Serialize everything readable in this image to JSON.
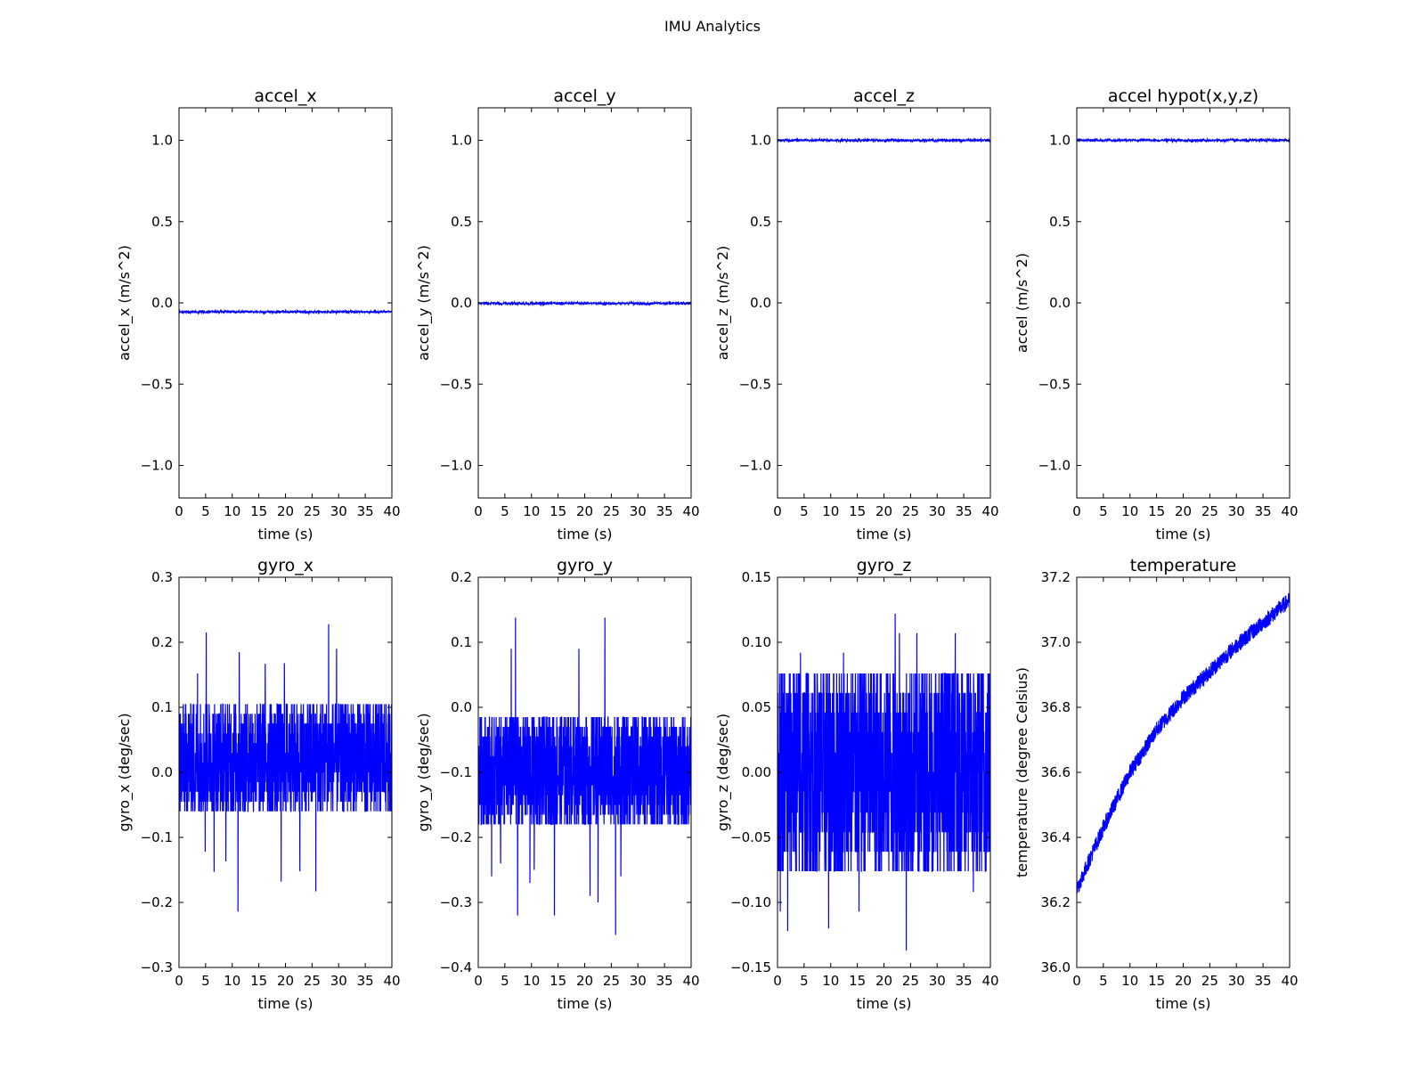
{
  "figure": {
    "title": "IMU Analytics"
  },
  "colors": {
    "series": "#0000ff",
    "axes": "#000000",
    "background": "#ffffff"
  },
  "chart_data": [
    {
      "type": "line",
      "title": "accel_x",
      "xlabel": "time (s)",
      "ylabel": "accel_x (m/s^2)",
      "xlim": [
        0,
        40
      ],
      "ylim": [
        -1.2,
        1.2
      ],
      "xticks": [
        0,
        5,
        10,
        15,
        20,
        25,
        30,
        35,
        40
      ],
      "xtick_labels": [
        "0",
        "5",
        "10",
        "15",
        "20",
        "25",
        "30",
        "35",
        "40"
      ],
      "yticks": [
        -1.0,
        -0.5,
        0.0,
        0.5,
        1.0
      ],
      "ytick_labels": [
        "−1.0",
        "−0.5",
        "0.0",
        "0.5",
        "1.0"
      ],
      "signal": {
        "kind": "noise",
        "mean": -0.055,
        "noise": 0.004,
        "n": 800
      }
    },
    {
      "type": "line",
      "title": "accel_y",
      "xlabel": "time (s)",
      "ylabel": "accel_y (m/s^2)",
      "xlim": [
        0,
        40
      ],
      "ylim": [
        -1.2,
        1.2
      ],
      "xticks": [
        0,
        5,
        10,
        15,
        20,
        25,
        30,
        35,
        40
      ],
      "xtick_labels": [
        "0",
        "5",
        "10",
        "15",
        "20",
        "25",
        "30",
        "35",
        "40"
      ],
      "yticks": [
        -1.0,
        -0.5,
        0.0,
        0.5,
        1.0
      ],
      "ytick_labels": [
        "−1.0",
        "−0.5",
        "0.0",
        "0.5",
        "1.0"
      ],
      "signal": {
        "kind": "noise",
        "mean": -0.003,
        "noise": 0.004,
        "n": 800
      }
    },
    {
      "type": "line",
      "title": "accel_z",
      "xlabel": "time (s)",
      "ylabel": "accel_z (m/s^2)",
      "xlim": [
        0,
        40
      ],
      "ylim": [
        -1.2,
        1.2
      ],
      "xticks": [
        0,
        5,
        10,
        15,
        20,
        25,
        30,
        35,
        40
      ],
      "xtick_labels": [
        "0",
        "5",
        "10",
        "15",
        "20",
        "25",
        "30",
        "35",
        "40"
      ],
      "yticks": [
        -1.0,
        -0.5,
        0.0,
        0.5,
        1.0
      ],
      "ytick_labels": [
        "−1.0",
        "−0.5",
        "0.0",
        "0.5",
        "1.0"
      ],
      "signal": {
        "kind": "noise",
        "mean": 1.0,
        "noise": 0.004,
        "n": 800
      }
    },
    {
      "type": "line",
      "title": "accel hypot(x,y,z)",
      "xlabel": "time (s)",
      "ylabel": "accel (m/s^2)",
      "xlim": [
        0,
        40
      ],
      "ylim": [
        -1.2,
        1.2
      ],
      "xticks": [
        0,
        5,
        10,
        15,
        20,
        25,
        30,
        35,
        40
      ],
      "xtick_labels": [
        "0",
        "5",
        "10",
        "15",
        "20",
        "25",
        "30",
        "35",
        "40"
      ],
      "yticks": [
        -1.0,
        -0.5,
        0.0,
        0.5,
        1.0
      ],
      "ytick_labels": [
        "−1.0",
        "−0.5",
        "0.0",
        "0.5",
        "1.0"
      ],
      "signal": {
        "kind": "noise",
        "mean": 1.0,
        "noise": 0.004,
        "n": 800
      }
    },
    {
      "type": "line",
      "title": "gyro_x",
      "xlabel": "time (s)",
      "ylabel": "gyro_x (deg/sec)",
      "xlim": [
        0,
        40
      ],
      "ylim": [
        -0.3,
        0.3
      ],
      "xticks": [
        0,
        5,
        10,
        15,
        20,
        25,
        30,
        35,
        40
      ],
      "xtick_labels": [
        "0",
        "5",
        "10",
        "15",
        "20",
        "25",
        "30",
        "35",
        "40"
      ],
      "yticks": [
        -0.3,
        -0.2,
        -0.1,
        0.0,
        0.1,
        0.2,
        0.3
      ],
      "ytick_labels": [
        "−0.3",
        "−0.2",
        "−0.1",
        "0.0",
        "0.1",
        "0.2",
        "0.3"
      ],
      "signal": {
        "kind": "quantized",
        "mean": 0.02,
        "levels": [
          -0.06,
          -0.045,
          -0.03,
          -0.015,
          0.0,
          0.015,
          0.03,
          0.045,
          0.06,
          0.075,
          0.09,
          0.105
        ],
        "n": 1400,
        "spikes": [
          [
            5.1,
            0.215
          ],
          [
            11.3,
            0.185
          ],
          [
            28.1,
            0.228
          ],
          [
            29.6,
            0.19
          ],
          [
            19.8,
            0.168
          ],
          [
            11.1,
            -0.214
          ],
          [
            25.7,
            -0.183
          ],
          [
            19.2,
            -0.168
          ],
          [
            6.6,
            -0.153
          ],
          [
            4.9,
            -0.122
          ],
          [
            8.8,
            -0.137
          ],
          [
            22.7,
            -0.152
          ],
          [
            16.2,
            0.167
          ],
          [
            3.5,
            0.152
          ]
        ]
      }
    },
    {
      "type": "line",
      "title": "gyro_y",
      "xlabel": "time (s)",
      "ylabel": "gyro_y (deg/sec)",
      "xlim": [
        0,
        40
      ],
      "ylim": [
        -0.4,
        0.2
      ],
      "xticks": [
        0,
        5,
        10,
        15,
        20,
        25,
        30,
        35,
        40
      ],
      "xtick_labels": [
        "0",
        "5",
        "10",
        "15",
        "20",
        "25",
        "30",
        "35",
        "40"
      ],
      "yticks": [
        -0.4,
        -0.3,
        -0.2,
        -0.1,
        0.0,
        0.1,
        0.2
      ],
      "ytick_labels": [
        "−0.4",
        "−0.3",
        "−0.2",
        "−0.1",
        "0.0",
        "0.1",
        "0.2"
      ],
      "signal": {
        "kind": "quantized",
        "mean": -0.1,
        "levels": [
          -0.18,
          -0.165,
          -0.15,
          -0.135,
          -0.12,
          -0.105,
          -0.09,
          -0.075,
          -0.06,
          -0.045,
          -0.03,
          -0.015
        ],
        "n": 1400,
        "spikes": [
          [
            7.0,
            0.138
          ],
          [
            23.8,
            0.138
          ],
          [
            6.2,
            0.09
          ],
          [
            18.9,
            0.09
          ],
          [
            7.4,
            -0.32
          ],
          [
            14.3,
            -0.32
          ],
          [
            25.8,
            -0.35
          ],
          [
            21.0,
            -0.29
          ],
          [
            22.5,
            -0.3
          ],
          [
            9.7,
            -0.27
          ],
          [
            2.5,
            -0.26
          ],
          [
            4.2,
            -0.24
          ],
          [
            10.5,
            -0.25
          ],
          [
            26.8,
            -0.26
          ]
        ]
      }
    },
    {
      "type": "line",
      "title": "gyro_z",
      "xlabel": "time (s)",
      "ylabel": "gyro_z (deg/sec)",
      "xlim": [
        0,
        40
      ],
      "ylim": [
        -0.15,
        0.15
      ],
      "xticks": [
        0,
        5,
        10,
        15,
        20,
        25,
        30,
        35,
        40
      ],
      "xtick_labels": [
        "0",
        "5",
        "10",
        "15",
        "20",
        "25",
        "30",
        "35",
        "40"
      ],
      "yticks": [
        -0.15,
        -0.1,
        -0.05,
        0.0,
        0.05,
        0.1,
        0.15
      ],
      "ytick_labels": [
        "−0.15",
        "−0.10",
        "−0.05",
        "0.00",
        "0.05",
        "0.10",
        "0.15"
      ],
      "signal": {
        "kind": "quantized",
        "mean": 0.0,
        "levels": [
          -0.076,
          -0.061,
          -0.046,
          -0.031,
          -0.015,
          0.0,
          0.015,
          0.031,
          0.046,
          0.061,
          0.076
        ],
        "n": 1400,
        "spikes": [
          [
            22.1,
            0.122
          ],
          [
            24.2,
            -0.137
          ],
          [
            1.9,
            -0.122
          ],
          [
            9.6,
            -0.12
          ],
          [
            22.9,
            0.107
          ],
          [
            33.4,
            0.107
          ],
          [
            4.3,
            0.092
          ],
          [
            15.3,
            -0.107
          ],
          [
            36.8,
            -0.092
          ],
          [
            0.5,
            -0.107
          ],
          [
            26.2,
            0.107
          ],
          [
            12.4,
            0.092
          ]
        ]
      }
    },
    {
      "type": "line",
      "title": "temperature",
      "xlabel": "time (s)",
      "ylabel": "temperature (degree Celsius)",
      "xlim": [
        0,
        40
      ],
      "ylim": [
        36.0,
        37.2
      ],
      "xticks": [
        0,
        5,
        10,
        15,
        20,
        25,
        30,
        35,
        40
      ],
      "xtick_labels": [
        "0",
        "5",
        "10",
        "15",
        "20",
        "25",
        "30",
        "35",
        "40"
      ],
      "yticks": [
        36.0,
        36.2,
        36.4,
        36.6,
        36.8,
        37.0,
        37.2
      ],
      "ytick_labels": [
        "36.0",
        "36.2",
        "36.4",
        "36.6",
        "36.8",
        "37.0",
        "37.2"
      ],
      "trend": {
        "x": [
          0,
          5,
          10,
          15,
          20,
          25,
          30,
          35,
          40
        ],
        "y": [
          36.24,
          36.43,
          36.6,
          36.73,
          36.83,
          36.91,
          36.99,
          37.06,
          37.13
        ]
      },
      "signal": {
        "kind": "trend_noise",
        "noise": 0.025,
        "n": 1200
      }
    }
  ]
}
